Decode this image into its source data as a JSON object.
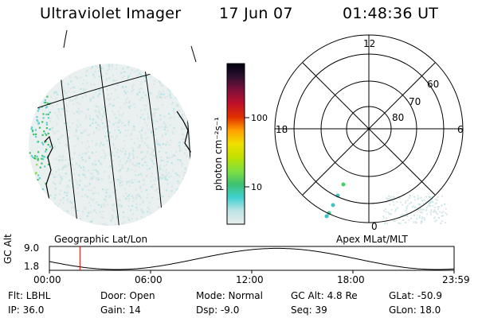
{
  "header": {
    "title": "Ultraviolet Imager",
    "date": "17 Jun 07",
    "time": "01:48:36 UT"
  },
  "colorbar": {
    "unit_label": "photon cm⁻²s⁻¹",
    "ticks": [
      {
        "label": "100",
        "value": 100
      },
      {
        "label": "10",
        "value": 10
      }
    ],
    "stops": [
      "#e8eeee",
      "#bfe4e4",
      "#3fd0d0",
      "#40c070",
      "#80e040",
      "#c0e000",
      "#f0e000",
      "#ffa000",
      "#e03000",
      "#c0102a",
      "#80103a",
      "#301030",
      "#000010"
    ]
  },
  "maps": {
    "left_label": "Geographic Lat/Lon",
    "right_label": "Apex MLat/MLT",
    "polar": {
      "mlt_labels": [
        {
          "label": "12",
          "mlt": 12
        },
        {
          "label": "18",
          "mlt": 18
        },
        {
          "label": "6",
          "mlt": 6
        },
        {
          "label": "0",
          "mlt": 0
        }
      ],
      "lat_labels": [
        {
          "label": "60",
          "lat": 60
        },
        {
          "label": "70",
          "lat": 70
        },
        {
          "label": "80",
          "lat": 80
        }
      ]
    }
  },
  "altitude_plot": {
    "ylabel": "GC Alt",
    "y_ticks": [
      {
        "label": "9.0",
        "value": 9.0
      },
      {
        "label": "1.8",
        "value": 1.8
      }
    ],
    "x_ticks": [
      {
        "label": "00:00",
        "hour": 0
      },
      {
        "label": "06:00",
        "hour": 6
      },
      {
        "label": "12:00",
        "hour": 12
      },
      {
        "label": "18:00",
        "hour": 18
      },
      {
        "label": "23:59",
        "hour": 24
      }
    ],
    "current_hour": 1.81
  },
  "info": {
    "flt": "Flt: LBHL",
    "ip": "IP: 36.0",
    "door": "Door: Open",
    "gain": "Gain: 14",
    "mode": "Mode: Normal",
    "dsp": "Dsp:  -9.0",
    "gcalt": "GC Alt: 4.8 Re",
    "seq": "Seq: 39",
    "glat": "GLat: -50.9",
    "glon": "GLon:  18.0"
  }
}
